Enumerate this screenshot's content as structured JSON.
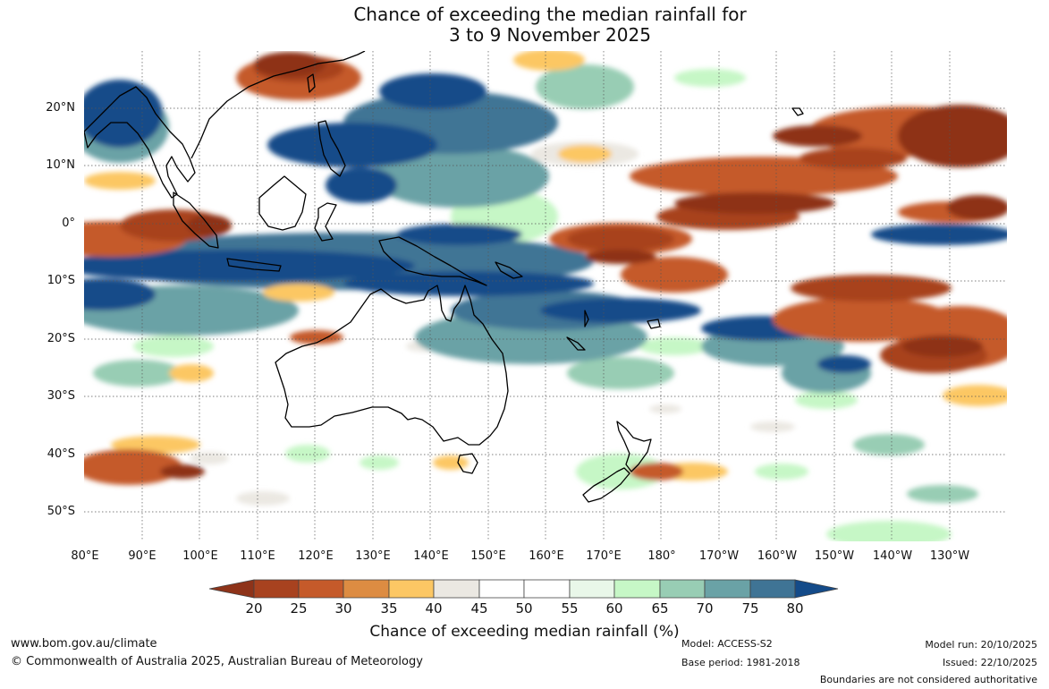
{
  "title": {
    "line1": "Chance of exceeding the median rainfall for",
    "line2": "3 to 9 November 2025"
  },
  "map": {
    "region": "Indo-Pacific, Australia and New Zealand",
    "lat_labels": [
      "20°N",
      "10°N",
      "0°",
      "10°S",
      "20°S",
      "30°S",
      "40°S",
      "50°S"
    ],
    "lon_labels": [
      "80°E",
      "90°E",
      "100°E",
      "110°E",
      "120°E",
      "130°E",
      "140°E",
      "150°E",
      "160°E",
      "170°E",
      "180°",
      "170°W",
      "160°W",
      "150°W",
      "140°W",
      "130°W"
    ]
  },
  "colorbar": {
    "title": "Chance of exceeding median rainfall (%)",
    "ticks": [
      "20",
      "25",
      "30",
      "35",
      "40",
      "45",
      "50",
      "55",
      "60",
      "65",
      "70",
      "75",
      "80"
    ],
    "colors": {
      "below_20": "#8e3319",
      "20-25": "#a8421f",
      "25-30": "#c55a2a",
      "30-35": "#dd8c42",
      "35-40": "#fcc764",
      "40-45": "#ebe8e2",
      "45-50": "#ffffff",
      "50-55": "#ffffff",
      "55-60": "#e9f7e9",
      "60-65": "#c6f7c6",
      "65-70": "#98cdb4",
      "70-75": "#6aa2a6",
      "75-80": "#3f7495",
      "above_80": "#144b89"
    }
  },
  "footer": {
    "website": "www.bom.gov.au/climate",
    "copyright": "© Commonwealth of Australia 2025, Australian Bureau of Meteorology",
    "model": "Model: ACCESS-S2",
    "base_period": "Base period: 1981-2018",
    "model_run": "Model run: 20/10/2025",
    "issued": "Issued: 22/10/2025",
    "disclaimer": "Boundaries are not considered authoritative"
  }
}
